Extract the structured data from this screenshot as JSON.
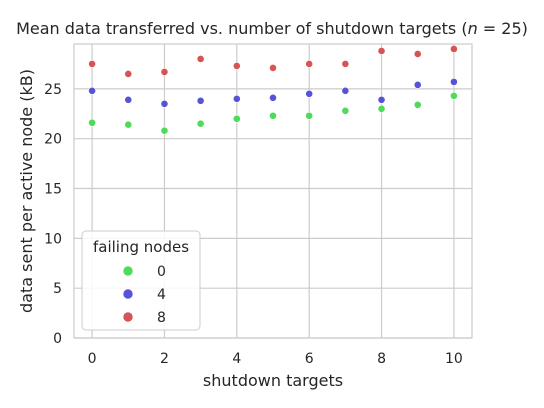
{
  "chart_data": {
    "type": "scatter",
    "title": "Mean data transferred vs. number of shutdown targets (n = 25)",
    "title_prefix": "Mean data transferred vs. number of shutdown targets (",
    "title_var": "n",
    "title_suffix": " = 25)",
    "xlabel": "shutdown targets",
    "ylabel": "data sent per active node (kB)",
    "xlim": [
      -0.5,
      10.5
    ],
    "ylim": [
      0,
      29.5
    ],
    "xticks": [
      0,
      2,
      4,
      6,
      8,
      10
    ],
    "yticks": [
      0,
      5,
      10,
      15,
      20,
      25
    ],
    "grid": true,
    "legend": {
      "title": "failing nodes",
      "placement": "lower-left"
    },
    "x": [
      0,
      1,
      2,
      3,
      4,
      5,
      6,
      7,
      8,
      9,
      10
    ],
    "series": [
      {
        "name": "0",
        "color": "#4fdb5a",
        "values": [
          21.6,
          21.4,
          20.8,
          21.5,
          22.0,
          22.3,
          22.3,
          22.8,
          23.0,
          23.4,
          24.3
        ]
      },
      {
        "name": "4",
        "color": "#5753d6",
        "values": [
          24.8,
          23.9,
          23.5,
          23.8,
          24.0,
          24.1,
          24.5,
          24.8,
          23.9,
          25.4,
          25.7
        ]
      },
      {
        "name": "8",
        "color": "#d65454",
        "values": [
          27.5,
          26.5,
          26.7,
          28.0,
          27.3,
          27.1,
          27.5,
          27.5,
          28.8,
          28.5,
          29.0
        ]
      }
    ]
  }
}
